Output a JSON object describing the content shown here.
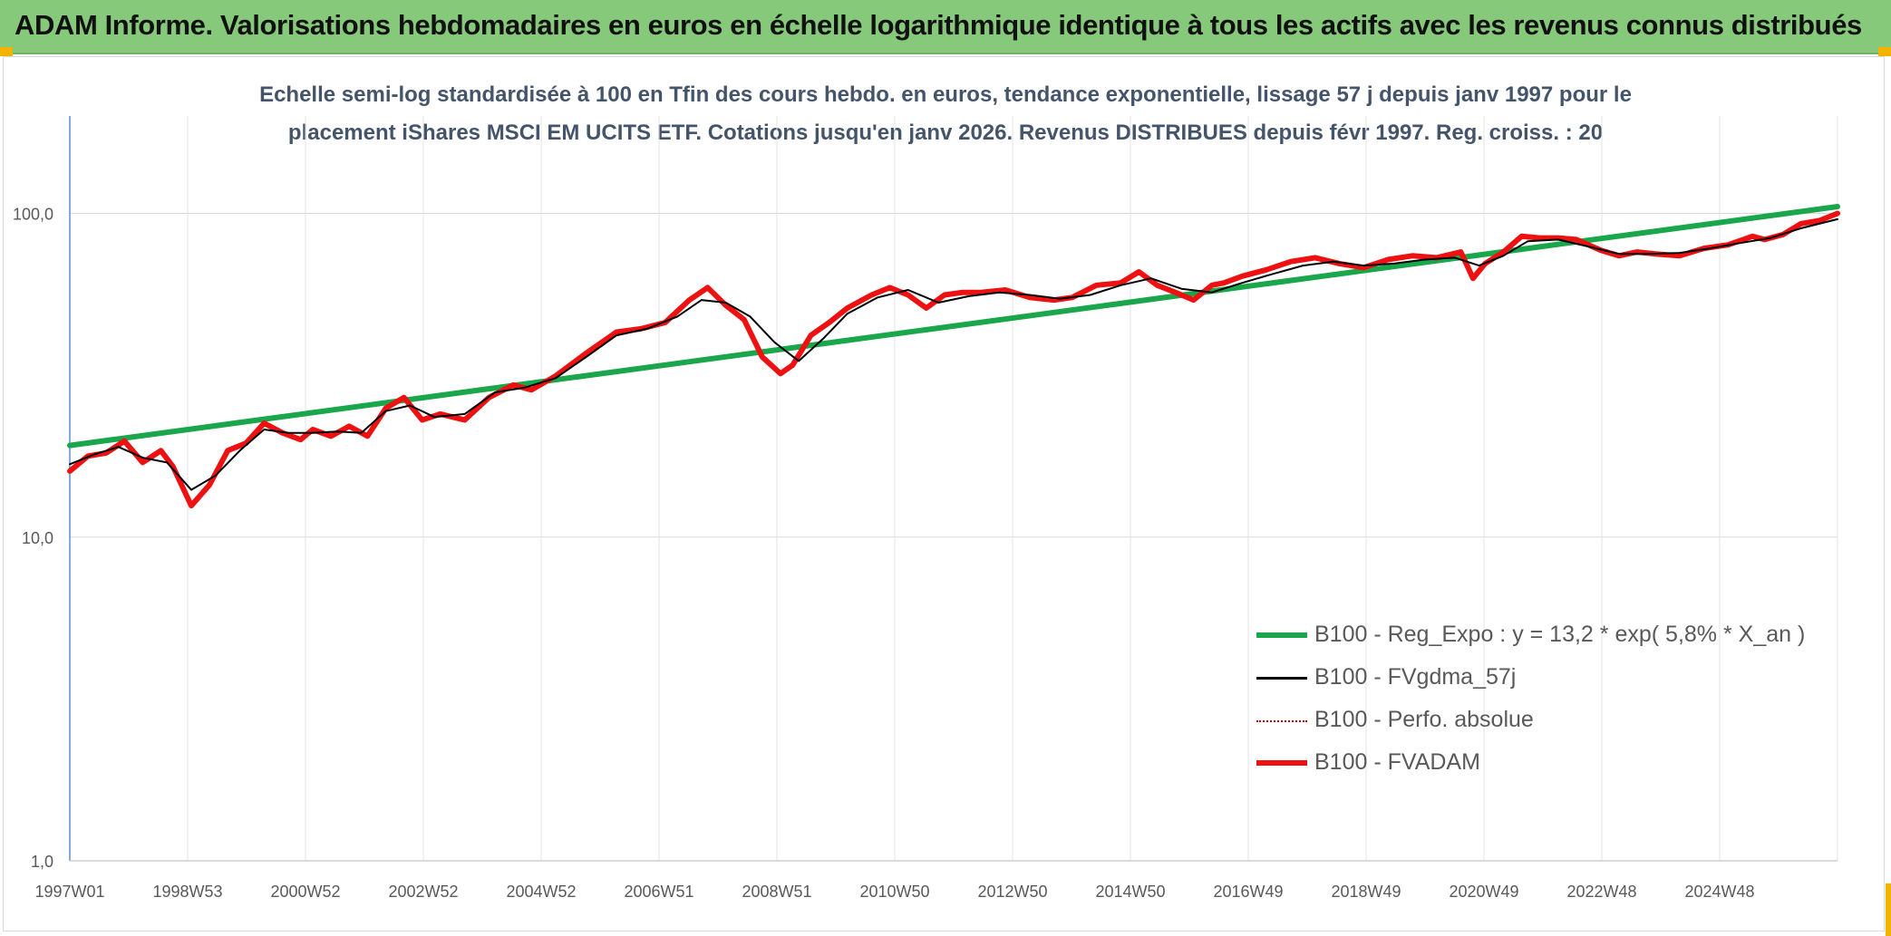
{
  "header": {
    "title": "ADAM Informe. Valorisations hebdomadaires en euros en échelle logarithmique identique à tous les actifs avec les revenus connus distribués"
  },
  "chart_data": {
    "type": "line",
    "title": "",
    "subtitle_lines": [
      "Echelle semi-log standardisée à 100 en Tfin des cours hebdo. en euros, tendance exponentielle, lissage 57 j depuis janv 1997 pour le",
      "placement iShares MSCI EM UCITS ETF. Cotations jusqu'en janv 2026. Revenus DISTRIBUES depuis févr 1997. Reg. croiss. : 20"
    ],
    "y_scale": "log",
    "ylim": [
      1,
      200
    ],
    "y_ticks": [
      "1,0",
      "10,0",
      "100,0"
    ],
    "y_tick_values": [
      1,
      10,
      100
    ],
    "x_ticks": [
      "1997W01",
      "1998W53",
      "2000W52",
      "2002W52",
      "2004W52",
      "2006W51",
      "2008W51",
      "2010W50",
      "2012W50",
      "2014W50",
      "2016W49",
      "2018W49",
      "2020W49",
      "2022W48",
      "2024W48"
    ],
    "x_range_years": [
      1997.0,
      2026.1
    ],
    "grid": true,
    "legend_position": "bottom-right",
    "legend": [
      {
        "name": "B100 - Reg_Expo : y = 13,2 * exp( 5,8% *  X_an )",
        "color": "#1aa64a",
        "style": "solid-thick"
      },
      {
        "name": "B100 - FVgdma_57j",
        "color": "#000000",
        "style": "solid"
      },
      {
        "name": "B100 - Perfo. absolue",
        "color": "#c00000",
        "style": "dotted"
      },
      {
        "name": "B100 - FVADAM",
        "color": "#ee1111",
        "style": "solid-thick"
      }
    ],
    "series": [
      {
        "name": "B100 - Reg_Expo : y = 13,2 * exp( 5,8% *  X_an )",
        "x": [
          1997.0,
          2026.1
        ],
        "values": [
          19.2,
          105.0
        ]
      },
      {
        "name": "B100 - FVADAM",
        "x": [
          1997.0,
          1997.3,
          1997.6,
          1997.9,
          1998.2,
          1998.5,
          1998.7,
          1999.0,
          1999.3,
          1999.6,
          1999.9,
          2000.2,
          2000.5,
          2000.8,
          2001.0,
          2001.3,
          2001.6,
          2001.9,
          2002.2,
          2002.5,
          2002.8,
          2003.1,
          2003.5,
          2003.9,
          2004.3,
          2004.6,
          2005.0,
          2005.5,
          2006.0,
          2006.4,
          2006.8,
          2007.2,
          2007.5,
          2007.8,
          2008.1,
          2008.4,
          2008.7,
          2008.9,
          2009.2,
          2009.5,
          2009.8,
          2010.2,
          2010.5,
          2010.8,
          2011.1,
          2011.4,
          2011.7,
          2012.0,
          2012.4,
          2012.8,
          2013.2,
          2013.5,
          2013.9,
          2014.3,
          2014.6,
          2014.9,
          2015.2,
          2015.5,
          2015.8,
          2016.0,
          2016.3,
          2016.7,
          2017.1,
          2017.5,
          2017.9,
          2018.3,
          2018.7,
          2019.1,
          2019.5,
          2019.9,
          2020.1,
          2020.3,
          2020.6,
          2020.9,
          2021.2,
          2021.5,
          2021.8,
          2022.2,
          2022.5,
          2022.8,
          2023.1,
          2023.5,
          2023.9,
          2024.3,
          2024.7,
          2024.9,
          2025.2,
          2025.5,
          2025.8,
          2026.1
        ],
        "values": [
          16.0,
          17.8,
          18.2,
          19.8,
          17.0,
          18.5,
          16.5,
          12.5,
          14.5,
          18.5,
          19.5,
          22.5,
          21.0,
          20.0,
          21.5,
          20.5,
          22.0,
          20.5,
          25.0,
          27.0,
          23.0,
          24.0,
          23.0,
          27.0,
          29.5,
          28.5,
          31.5,
          37.0,
          43.0,
          44.0,
          46.0,
          54.0,
          59.0,
          52.0,
          47.0,
          36.0,
          32.0,
          34.0,
          42.0,
          46.0,
          51.0,
          56.0,
          59.0,
          56.0,
          51.0,
          56.0,
          57.0,
          57.0,
          58.0,
          55.0,
          54.0,
          55.0,
          60.0,
          61.0,
          66.0,
          60.0,
          57.0,
          54.0,
          60.0,
          61.0,
          64.0,
          67.0,
          71.0,
          73.0,
          70.0,
          68.0,
          72.0,
          74.0,
          73.0,
          76.0,
          63.0,
          70.0,
          76.0,
          85.0,
          84.0,
          84.0,
          83.0,
          77.0,
          74.0,
          76.0,
          75.0,
          74.0,
          78.0,
          80.0,
          85.0,
          83.0,
          86.0,
          93.0,
          95.0,
          100.0
        ]
      },
      {
        "name": "B100 - FVgdma_57j",
        "x": [
          1997.0,
          1997.4,
          1997.8,
          1998.2,
          1998.6,
          1999.0,
          1999.4,
          1999.8,
          2000.2,
          2000.6,
          2001.0,
          2001.4,
          2001.8,
          2002.2,
          2002.6,
          2003.0,
          2003.5,
          2004.0,
          2004.5,
          2005.0,
          2005.5,
          2006.0,
          2006.5,
          2007.0,
          2007.4,
          2007.8,
          2008.2,
          2008.6,
          2009.0,
          2009.4,
          2009.8,
          2010.3,
          2010.8,
          2011.3,
          2011.8,
          2012.3,
          2012.8,
          2013.3,
          2013.8,
          2014.3,
          2014.8,
          2015.3,
          2015.8,
          2016.3,
          2016.8,
          2017.3,
          2017.8,
          2018.3,
          2018.8,
          2019.3,
          2019.8,
          2020.2,
          2020.6,
          2021.0,
          2021.5,
          2022.0,
          2022.5,
          2023.0,
          2023.5,
          2024.0,
          2024.5,
          2025.0,
          2025.5,
          2026.1
        ],
        "values": [
          16.8,
          18.0,
          19.0,
          17.6,
          17.0,
          14.0,
          15.5,
          18.5,
          21.5,
          21.0,
          21.0,
          21.2,
          21.0,
          24.5,
          25.5,
          23.5,
          24.0,
          28.0,
          29.0,
          31.0,
          36.0,
          42.0,
          44.0,
          48.0,
          54.0,
          53.0,
          48.0,
          40.0,
          35.0,
          41.0,
          49.0,
          55.0,
          58.0,
          53.0,
          55.5,
          57.0,
          56.0,
          54.5,
          56.0,
          60.0,
          63.0,
          58.5,
          57.0,
          61.0,
          65.0,
          69.0,
          71.0,
          69.0,
          70.0,
          72.0,
          73.0,
          69.0,
          74.0,
          82.0,
          83.0,
          79.0,
          75.0,
          75.0,
          75.5,
          78.0,
          81.0,
          84.0,
          90.0,
          96.0
        ]
      }
    ]
  }
}
